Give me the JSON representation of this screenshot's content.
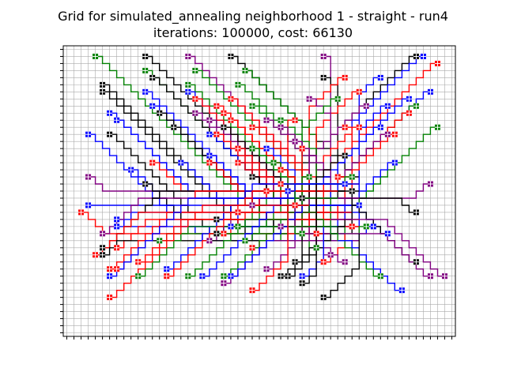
{
  "chart_data": {
    "type": "grid-routing",
    "title": "Grid for simulated_annealing neighborhood 1 - straight - run4\niterations: 100000, cost: 66130",
    "xlabel": "",
    "ylabel": "",
    "xlim": [
      0,
      55
    ],
    "ylim": [
      0,
      41
    ],
    "grid": true,
    "wire_colors": {
      "black": "#000000",
      "blue": "#0000ff",
      "red": "#ff0000",
      "green": "#008000",
      "purple": "#800080"
    },
    "gridline_color": "#aaaaaa",
    "gates": [
      {
        "color": "green",
        "x": 4,
        "y": 39
      },
      {
        "color": "black",
        "x": 11,
        "y": 39
      },
      {
        "color": "purple",
        "x": 17,
        "y": 39
      },
      {
        "color": "black",
        "x": 23,
        "y": 39
      },
      {
        "color": "purple",
        "x": 36,
        "y": 39
      },
      {
        "color": "black",
        "x": 49,
        "y": 39
      },
      {
        "color": "blue",
        "x": 50,
        "y": 39
      },
      {
        "color": "red",
        "x": 52,
        "y": 38
      },
      {
        "color": "green",
        "x": 11,
        "y": 37
      },
      {
        "color": "green",
        "x": 18,
        "y": 37
      },
      {
        "color": "green",
        "x": 25,
        "y": 37
      },
      {
        "color": "black",
        "x": 12,
        "y": 36
      },
      {
        "color": "black",
        "x": 36,
        "y": 36
      },
      {
        "color": "red",
        "x": 39,
        "y": 36
      },
      {
        "color": "blue",
        "x": 44,
        "y": 36
      },
      {
        "color": "green",
        "x": 17,
        "y": 35
      },
      {
        "color": "green",
        "x": 24,
        "y": 35
      },
      {
        "color": "black",
        "x": 5,
        "y": 35
      },
      {
        "color": "black",
        "x": 5,
        "y": 34
      },
      {
        "color": "blue",
        "x": 11,
        "y": 34
      },
      {
        "color": "blue",
        "x": 17,
        "y": 34
      },
      {
        "color": "red",
        "x": 41,
        "y": 34
      },
      {
        "color": "blue",
        "x": 51,
        "y": 34
      },
      {
        "color": "blue",
        "x": 48,
        "y": 33
      },
      {
        "color": "red",
        "x": 18,
        "y": 33
      },
      {
        "color": "red",
        "x": 23,
        "y": 33
      },
      {
        "color": "purple",
        "x": 34,
        "y": 33
      },
      {
        "color": "green",
        "x": 38,
        "y": 33
      },
      {
        "color": "green",
        "x": 26,
        "y": 32
      },
      {
        "color": "red",
        "x": 21,
        "y": 32
      },
      {
        "color": "blue",
        "x": 12,
        "y": 32
      },
      {
        "color": "black",
        "x": 13,
        "y": 31
      },
      {
        "color": "blue",
        "x": 6,
        "y": 31
      },
      {
        "color": "purple",
        "x": 18,
        "y": 31
      },
      {
        "color": "red",
        "x": 22,
        "y": 31
      },
      {
        "color": "purple",
        "x": 42,
        "y": 32
      },
      {
        "color": "blue",
        "x": 45,
        "y": 32
      },
      {
        "color": "green",
        "x": 49,
        "y": 32
      },
      {
        "color": "red",
        "x": 48,
        "y": 31
      },
      {
        "color": "blue",
        "x": 7,
        "y": 30
      },
      {
        "color": "purple",
        "x": 20,
        "y": 30
      },
      {
        "color": "red",
        "x": 23,
        "y": 30
      },
      {
        "color": "purple",
        "x": 28,
        "y": 30
      },
      {
        "color": "green",
        "x": 30,
        "y": 30
      },
      {
        "color": "red",
        "x": 32,
        "y": 30
      },
      {
        "color": "black",
        "x": 15,
        "y": 29
      },
      {
        "color": "black",
        "x": 22,
        "y": 29
      },
      {
        "color": "red",
        "x": 26,
        "y": 29
      },
      {
        "color": "purple",
        "x": 30,
        "y": 29
      },
      {
        "color": "blue",
        "x": 3,
        "y": 28
      },
      {
        "color": "red",
        "x": 39,
        "y": 29
      },
      {
        "color": "red",
        "x": 41,
        "y": 29
      },
      {
        "color": "blue",
        "x": 44,
        "y": 29
      },
      {
        "color": "purple",
        "x": 45,
        "y": 28
      },
      {
        "color": "red",
        "x": 46,
        "y": 28
      },
      {
        "color": "green",
        "x": 52,
        "y": 29
      },
      {
        "color": "black",
        "x": 6,
        "y": 28
      },
      {
        "color": "blue",
        "x": 20,
        "y": 28
      },
      {
        "color": "red",
        "x": 21,
        "y": 28
      },
      {
        "color": "purple",
        "x": 32,
        "y": 27
      },
      {
        "color": "red",
        "x": 33,
        "y": 26
      },
      {
        "color": "green",
        "x": 26,
        "y": 26
      },
      {
        "color": "red",
        "x": 24,
        "y": 26
      },
      {
        "color": "blue",
        "x": 28,
        "y": 26
      },
      {
        "color": "blue",
        "x": 20,
        "y": 25
      },
      {
        "color": "red",
        "x": 24,
        "y": 24
      },
      {
        "color": "black",
        "x": 39,
        "y": 25
      },
      {
        "color": "blue",
        "x": 16,
        "y": 24
      },
      {
        "color": "red",
        "x": 12,
        "y": 24
      },
      {
        "color": "red",
        "x": 20,
        "y": 24
      },
      {
        "color": "green",
        "x": 29,
        "y": 24
      },
      {
        "color": "blue",
        "x": 46,
        "y": 24
      },
      {
        "color": "blue",
        "x": 9,
        "y": 23
      },
      {
        "color": "red",
        "x": 30,
        "y": 23
      },
      {
        "color": "green",
        "x": 34,
        "y": 22
      },
      {
        "color": "red",
        "x": 38,
        "y": 22
      },
      {
        "color": "black",
        "x": 26,
        "y": 22
      },
      {
        "color": "purple",
        "x": 3,
        "y": 22
      },
      {
        "color": "black",
        "x": 11,
        "y": 21
      },
      {
        "color": "red",
        "x": 30,
        "y": 21
      },
      {
        "color": "blue",
        "x": 31,
        "y": 20
      },
      {
        "color": "green",
        "x": 40,
        "y": 22
      },
      {
        "color": "blue",
        "x": 39,
        "y": 21
      },
      {
        "color": "black",
        "x": 40,
        "y": 20
      },
      {
        "color": "purple",
        "x": 51,
        "y": 21
      },
      {
        "color": "red",
        "x": 28,
        "y": 20
      },
      {
        "color": "black",
        "x": 33,
        "y": 19
      },
      {
        "color": "red",
        "x": 32,
        "y": 18
      },
      {
        "color": "purple",
        "x": 26,
        "y": 18
      },
      {
        "color": "red",
        "x": 24,
        "y": 17
      },
      {
        "color": "blue",
        "x": 41,
        "y": 18
      },
      {
        "color": "blue",
        "x": 3,
        "y": 18
      },
      {
        "color": "red",
        "x": 2,
        "y": 17
      },
      {
        "color": "black",
        "x": 49,
        "y": 17
      },
      {
        "color": "blue",
        "x": 7,
        "y": 16
      },
      {
        "color": "black",
        "x": 21,
        "y": 16
      },
      {
        "color": "blue",
        "x": 23,
        "y": 15
      },
      {
        "color": "green",
        "x": 24,
        "y": 15
      },
      {
        "color": "blue",
        "x": 7,
        "y": 15
      },
      {
        "color": "purple",
        "x": 30,
        "y": 15
      },
      {
        "color": "red",
        "x": 40,
        "y": 15
      },
      {
        "color": "green",
        "x": 42,
        "y": 15
      },
      {
        "color": "purple",
        "x": 5,
        "y": 14
      },
      {
        "color": "black",
        "x": 21,
        "y": 14
      },
      {
        "color": "red",
        "x": 22,
        "y": 14
      },
      {
        "color": "purple",
        "x": 20,
        "y": 13
      },
      {
        "color": "red",
        "x": 35,
        "y": 14
      },
      {
        "color": "green",
        "x": 33,
        "y": 14
      },
      {
        "color": "blue",
        "x": 43,
        "y": 15
      },
      {
        "color": "blue",
        "x": 45,
        "y": 14
      },
      {
        "color": "green",
        "x": 13,
        "y": 13
      },
      {
        "color": "green",
        "x": 25,
        "y": 13
      },
      {
        "color": "red",
        "x": 26,
        "y": 12
      },
      {
        "color": "black",
        "x": 5,
        "y": 12
      },
      {
        "color": "red",
        "x": 7,
        "y": 12
      },
      {
        "color": "green",
        "x": 35,
        "y": 12
      },
      {
        "color": "red",
        "x": 4,
        "y": 11
      },
      {
        "color": "black",
        "x": 5,
        "y": 11
      },
      {
        "color": "purple",
        "x": 37,
        "y": 11
      },
      {
        "color": "red",
        "x": 36,
        "y": 10
      },
      {
        "color": "black",
        "x": 32,
        "y": 10
      },
      {
        "color": "purple",
        "x": 39,
        "y": 10
      },
      {
        "color": "red",
        "x": 7,
        "y": 9
      },
      {
        "color": "red",
        "x": 10,
        "y": 10
      },
      {
        "color": "blue",
        "x": 14,
        "y": 9
      },
      {
        "color": "red",
        "x": 6,
        "y": 9
      },
      {
        "color": "purple",
        "x": 28,
        "y": 9
      },
      {
        "color": "black",
        "x": 49,
        "y": 10
      },
      {
        "color": "purple",
        "x": 51,
        "y": 8
      },
      {
        "color": "blue",
        "x": 6,
        "y": 8
      },
      {
        "color": "green",
        "x": 10,
        "y": 8
      },
      {
        "color": "red",
        "x": 14,
        "y": 8
      },
      {
        "color": "green",
        "x": 17,
        "y": 8
      },
      {
        "color": "blue",
        "x": 19,
        "y": 8
      },
      {
        "color": "green",
        "x": 22,
        "y": 8
      },
      {
        "color": "purple",
        "x": 22,
        "y": 7
      },
      {
        "color": "blue",
        "x": 23,
        "y": 8
      },
      {
        "color": "black",
        "x": 30,
        "y": 8
      },
      {
        "color": "black",
        "x": 31,
        "y": 8
      },
      {
        "color": "blue",
        "x": 33,
        "y": 8
      },
      {
        "color": "green",
        "x": 44,
        "y": 8
      },
      {
        "color": "purple",
        "x": 53,
        "y": 8
      },
      {
        "color": "black",
        "x": 33,
        "y": 7
      },
      {
        "color": "red",
        "x": 26,
        "y": 6
      },
      {
        "color": "blue",
        "x": 47,
        "y": 6
      },
      {
        "color": "red",
        "x": 6,
        "y": 5
      },
      {
        "color": "black",
        "x": 36,
        "y": 5
      }
    ]
  }
}
